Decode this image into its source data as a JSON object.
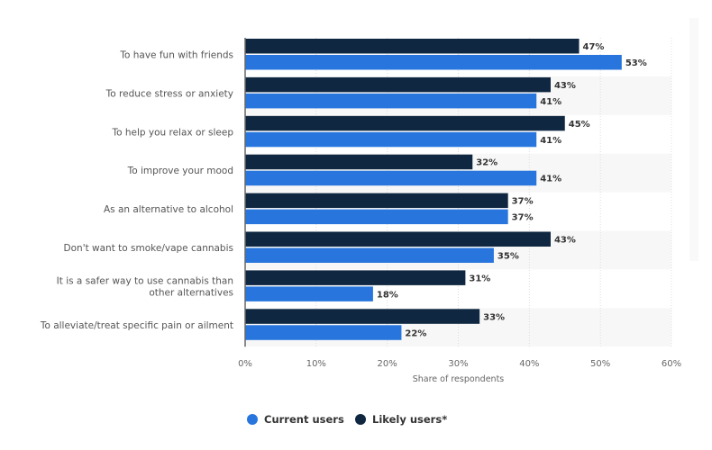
{
  "chart_data": {
    "type": "bar",
    "orientation": "horizontal",
    "categories": [
      [
        "To have fun with friends"
      ],
      [
        "To reduce stress or anxiety"
      ],
      [
        "To help you relax or sleep"
      ],
      [
        "To improve your mood"
      ],
      [
        "As an alternative to alcohol"
      ],
      [
        "Don't want to smoke/vape cannabis"
      ],
      [
        "It is a safer way to use cannabis than",
        "other alternatives"
      ],
      [
        "To alleviate/treat specific pain or ailment"
      ]
    ],
    "series": [
      {
        "name": "Likely users*",
        "color": "#0f2740",
        "values": [
          47,
          43,
          45,
          32,
          37,
          43,
          31,
          33
        ]
      },
      {
        "name": "Current users",
        "color": "#2876dd",
        "values": [
          53,
          41,
          41,
          41,
          37,
          35,
          18,
          22
        ]
      }
    ],
    "xlabel": "Share of respondents",
    "xlim": [
      0,
      60
    ],
    "xticks": [
      "0%",
      "10%",
      "20%",
      "30%",
      "40%",
      "50%",
      "60%"
    ],
    "legend": [
      "Current users",
      "Likely users*"
    ],
    "legend_position": "bottom-left",
    "grid": true
  }
}
